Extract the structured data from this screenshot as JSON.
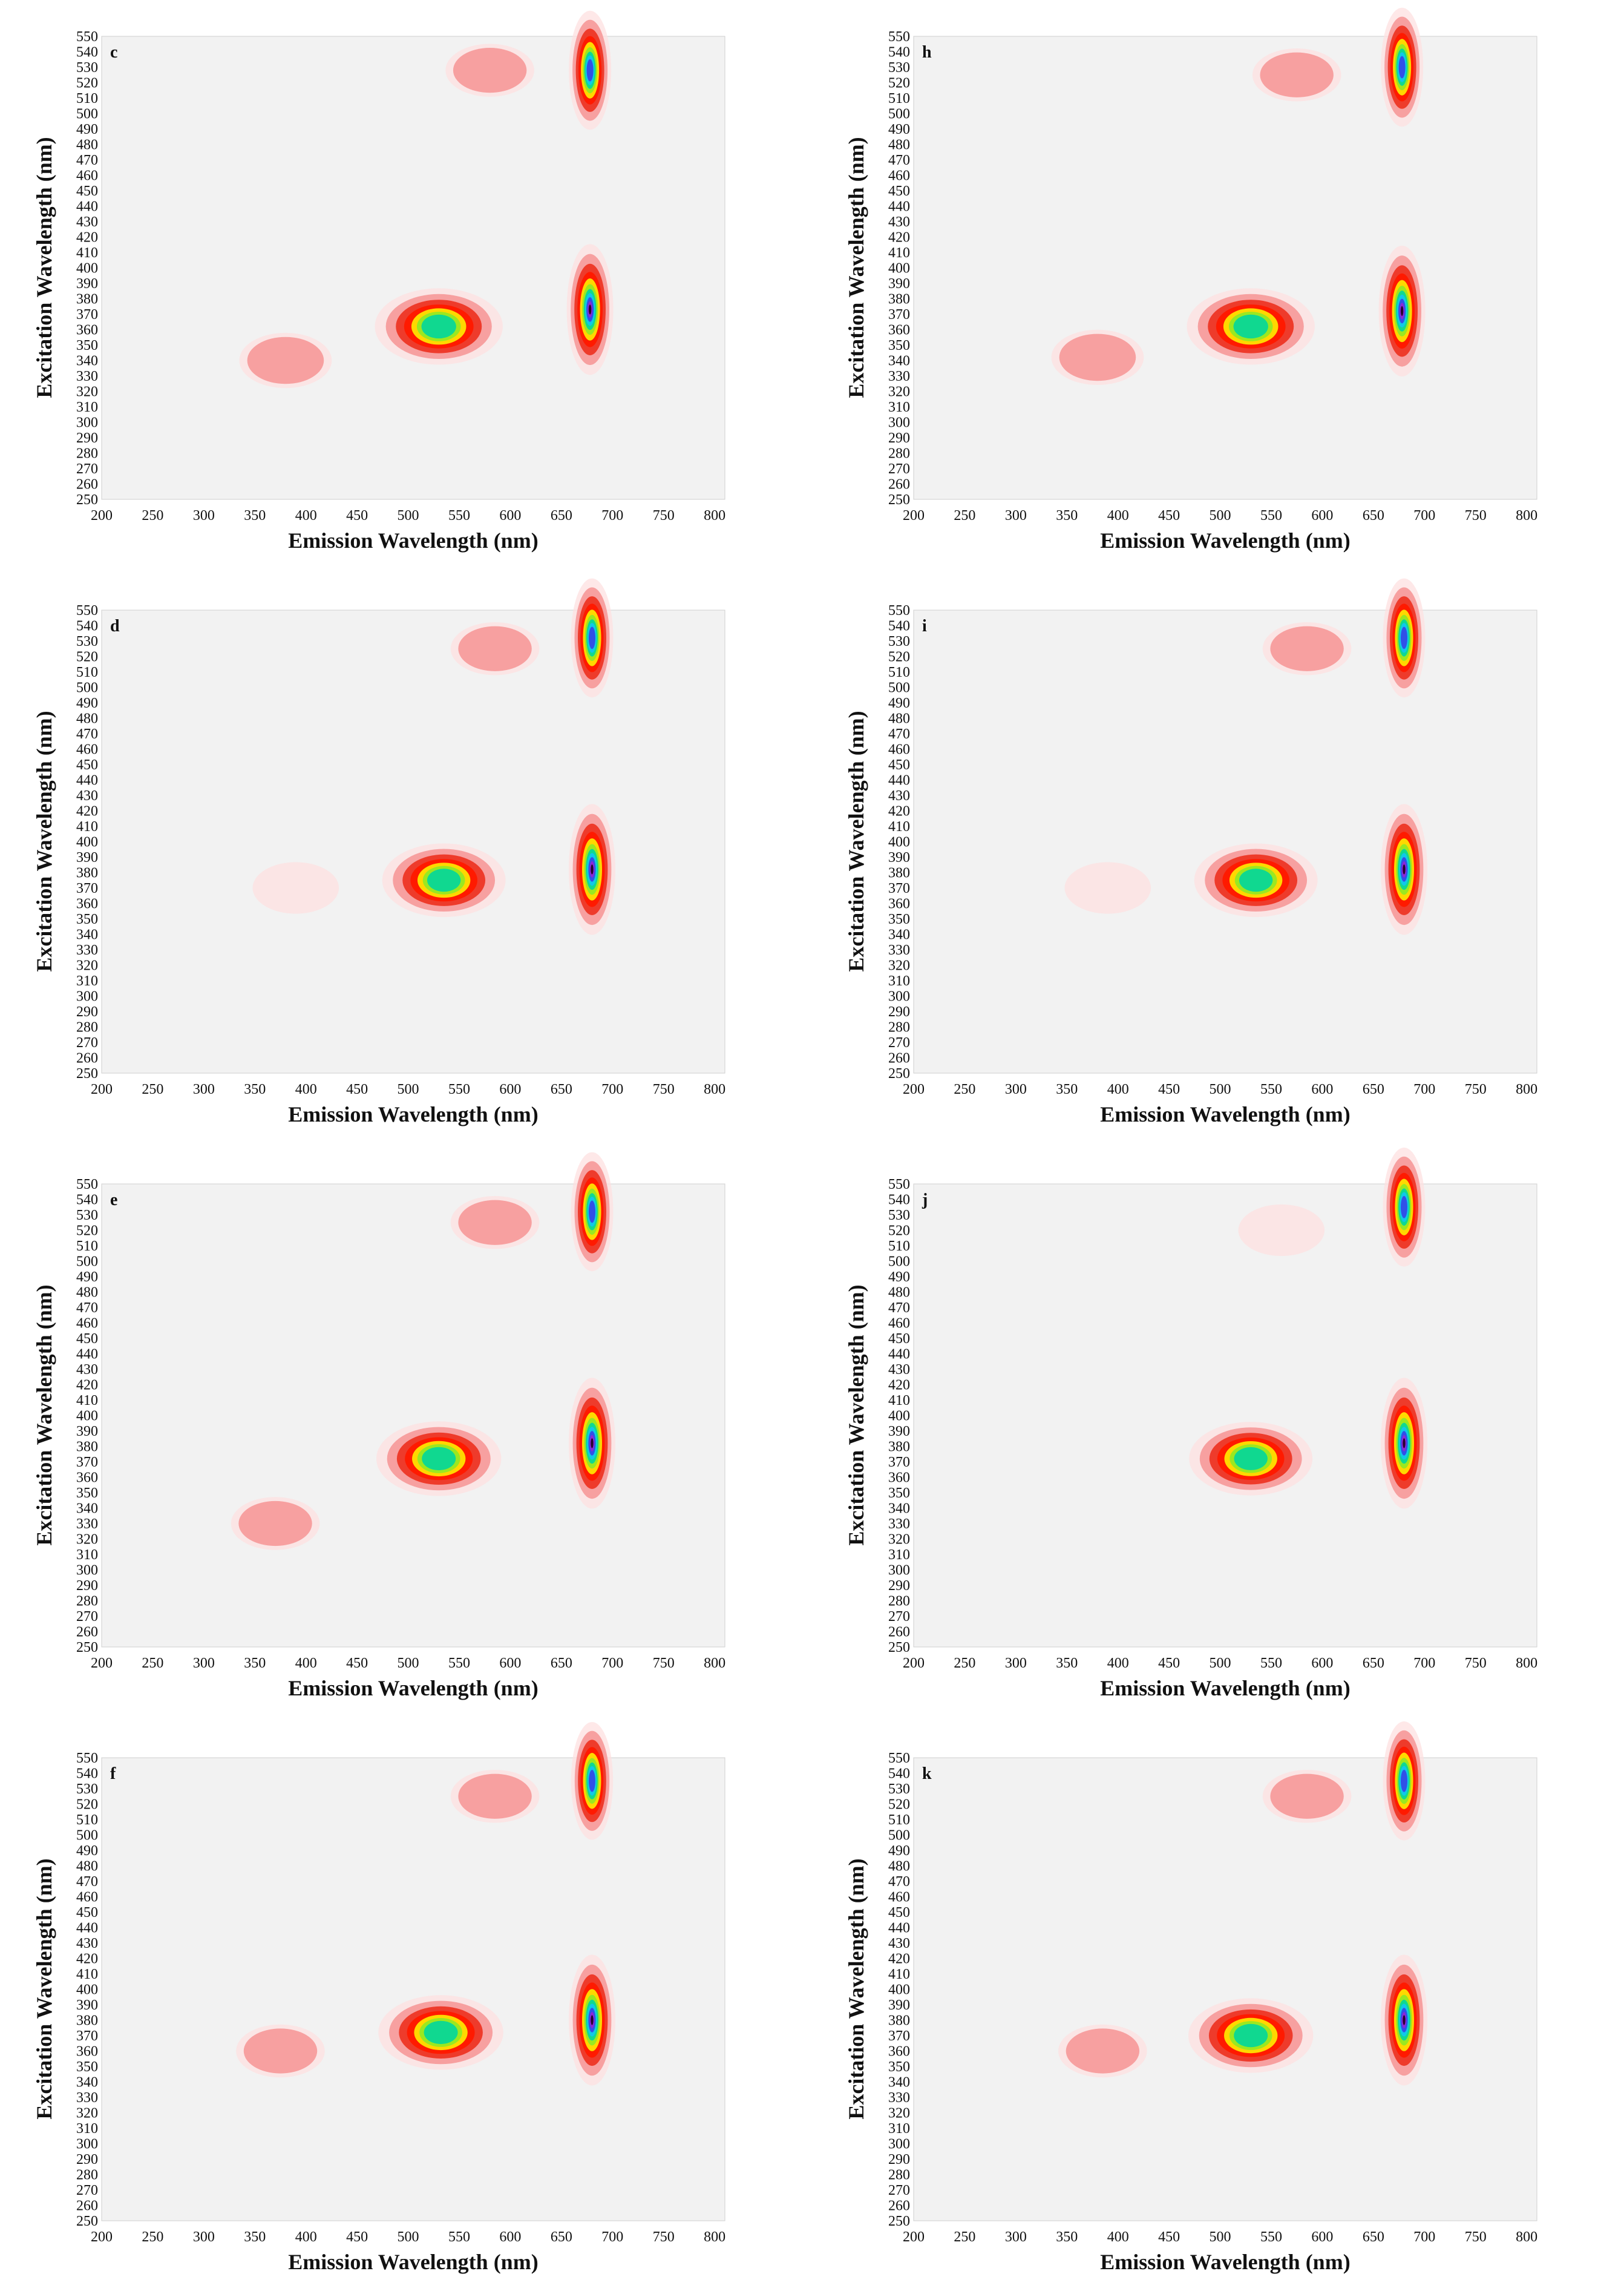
{
  "figure": {
    "panel_order": [
      "c",
      "h",
      "d",
      "i",
      "e",
      "j",
      "f",
      "k"
    ]
  },
  "colors": {
    "background": "#f2f2f2",
    "plot_edge": "#cfcfcf",
    "colormap": [
      "#fde0e0",
      "#f7a0a0",
      "#ee3b2b",
      "#ff1a00",
      "#ffd800",
      "#9be820",
      "#10d890",
      "#10c8e8",
      "#3050e8",
      "#8a28d8",
      "#2a0033"
    ]
  },
  "chart_data": [
    {
      "panel": "c",
      "type": "heatmap",
      "title": "",
      "xlabel": "Emission Wavelength (nm)",
      "ylabel": "Excitation Wavelength (nm)",
      "xlim": [
        200,
        810
      ],
      "ylim": [
        250,
        550
      ],
      "x_ticks": [
        "200",
        "250",
        "300",
        "350",
        "400",
        "450",
        "500",
        "550",
        "600",
        "650",
        "700",
        "750",
        "800"
      ],
      "y_ticks": [
        "250",
        "260",
        "270",
        "280",
        "290",
        "300",
        "310",
        "320",
        "330",
        "340",
        "350",
        "360",
        "370",
        "380",
        "390",
        "400",
        "410",
        "420",
        "430",
        "440",
        "450",
        "460",
        "470",
        "480",
        "490",
        "500",
        "510",
        "520",
        "530",
        "540",
        "550"
      ],
      "peaks": [
        {
          "em": 530,
          "ex": 362,
          "intensity": 0.66
        },
        {
          "em": 678,
          "ex": 373,
          "intensity": 1.0
        },
        {
          "em": 678,
          "ex": 528,
          "intensity": 0.82
        },
        {
          "em": 380,
          "ex": 340,
          "intensity": 0.2
        },
        {
          "em": 580,
          "ex": 528,
          "intensity": 0.15
        }
      ]
    },
    {
      "panel": "h",
      "type": "heatmap",
      "title": "",
      "xlabel": "Emission Wavelength (nm)",
      "ylabel": "Excitation Wavelength (nm)",
      "xlim": [
        200,
        810
      ],
      "ylim": [
        250,
        550
      ],
      "x_ticks": [
        "200",
        "250",
        "300",
        "350",
        "400",
        "450",
        "500",
        "550",
        "600",
        "650",
        "700",
        "750",
        "800"
      ],
      "y_ticks": [
        "250",
        "260",
        "270",
        "280",
        "290",
        "300",
        "310",
        "320",
        "330",
        "340",
        "350",
        "360",
        "370",
        "380",
        "390",
        "400",
        "410",
        "420",
        "430",
        "440",
        "450",
        "460",
        "470",
        "480",
        "490",
        "500",
        "510",
        "520",
        "530",
        "540",
        "550"
      ],
      "peaks": [
        {
          "em": 530,
          "ex": 362,
          "intensity": 0.66
        },
        {
          "em": 678,
          "ex": 372,
          "intensity": 1.0
        },
        {
          "em": 678,
          "ex": 530,
          "intensity": 0.82
        },
        {
          "em": 380,
          "ex": 342,
          "intensity": 0.2
        },
        {
          "em": 575,
          "ex": 525,
          "intensity": 0.15
        }
      ]
    },
    {
      "panel": "d",
      "type": "heatmap",
      "title": "",
      "xlabel": "Emission Wavelength (nm)",
      "ylabel": "Excitation Wavelength (nm)",
      "xlim": [
        200,
        810
      ],
      "ylim": [
        250,
        550
      ],
      "x_ticks": [
        "200",
        "250",
        "300",
        "350",
        "400",
        "450",
        "500",
        "550",
        "600",
        "650",
        "700",
        "750",
        "800"
      ],
      "y_ticks": [
        "250",
        "260",
        "270",
        "280",
        "290",
        "300",
        "310",
        "320",
        "330",
        "340",
        "350",
        "360",
        "370",
        "380",
        "390",
        "400",
        "410",
        "420",
        "430",
        "440",
        "450",
        "460",
        "470",
        "480",
        "490",
        "500",
        "510",
        "520",
        "530",
        "540",
        "550"
      ],
      "peaks": [
        {
          "em": 535,
          "ex": 375,
          "intensity": 0.6
        },
        {
          "em": 680,
          "ex": 382,
          "intensity": 1.0
        },
        {
          "em": 680,
          "ex": 532,
          "intensity": 0.82
        },
        {
          "em": 390,
          "ex": 370,
          "intensity": 0.12
        },
        {
          "em": 585,
          "ex": 525,
          "intensity": 0.15
        }
      ]
    },
    {
      "panel": "i",
      "type": "heatmap",
      "title": "",
      "xlabel": "Emission Wavelength (nm)",
      "ylabel": "Excitation Wavelength (nm)",
      "xlim": [
        200,
        810
      ],
      "ylim": [
        250,
        550
      ],
      "x_ticks": [
        "200",
        "250",
        "300",
        "350",
        "400",
        "450",
        "500",
        "550",
        "600",
        "650",
        "700",
        "750",
        "800"
      ],
      "y_ticks": [
        "250",
        "260",
        "270",
        "280",
        "290",
        "300",
        "310",
        "320",
        "330",
        "340",
        "350",
        "360",
        "370",
        "380",
        "390",
        "400",
        "410",
        "420",
        "430",
        "440",
        "450",
        "460",
        "470",
        "480",
        "490",
        "500",
        "510",
        "520",
        "530",
        "540",
        "550"
      ],
      "peaks": [
        {
          "em": 535,
          "ex": 375,
          "intensity": 0.6
        },
        {
          "em": 680,
          "ex": 382,
          "intensity": 1.0
        },
        {
          "em": 680,
          "ex": 532,
          "intensity": 0.82
        },
        {
          "em": 390,
          "ex": 370,
          "intensity": 0.12
        },
        {
          "em": 585,
          "ex": 525,
          "intensity": 0.15
        }
      ]
    },
    {
      "panel": "e",
      "type": "heatmap",
      "title": "",
      "xlabel": "Emission Wavelength (nm)",
      "ylabel": "Excitation Wavelength (nm)",
      "xlim": [
        200,
        810
      ],
      "ylim": [
        250,
        550
      ],
      "x_ticks": [
        "200",
        "250",
        "300",
        "350",
        "400",
        "450",
        "500",
        "550",
        "600",
        "650",
        "700",
        "750",
        "800"
      ],
      "y_ticks": [
        "250",
        "260",
        "270",
        "280",
        "290",
        "300",
        "310",
        "320",
        "330",
        "340",
        "350",
        "360",
        "370",
        "380",
        "390",
        "400",
        "410",
        "420",
        "430",
        "440",
        "450",
        "460",
        "470",
        "480",
        "490",
        "500",
        "510",
        "520",
        "530",
        "540",
        "550"
      ],
      "peaks": [
        {
          "em": 530,
          "ex": 372,
          "intensity": 0.62
        },
        {
          "em": 680,
          "ex": 382,
          "intensity": 1.0
        },
        {
          "em": 680,
          "ex": 532,
          "intensity": 0.82
        },
        {
          "em": 370,
          "ex": 330,
          "intensity": 0.15
        },
        {
          "em": 585,
          "ex": 525,
          "intensity": 0.15
        }
      ]
    },
    {
      "panel": "j",
      "type": "heatmap",
      "title": "",
      "xlabel": "Emission Wavelength (nm)",
      "ylabel": "Excitation Wavelength (nm)",
      "xlim": [
        200,
        810
      ],
      "ylim": [
        250,
        550
      ],
      "x_ticks": [
        "200",
        "250",
        "300",
        "350",
        "400",
        "450",
        "500",
        "550",
        "600",
        "650",
        "700",
        "750",
        "800"
      ],
      "y_ticks": [
        "250",
        "260",
        "270",
        "280",
        "290",
        "300",
        "310",
        "320",
        "330",
        "340",
        "350",
        "360",
        "370",
        "380",
        "390",
        "400",
        "410",
        "420",
        "430",
        "440",
        "450",
        "460",
        "470",
        "480",
        "490",
        "500",
        "510",
        "520",
        "530",
        "540",
        "550"
      ],
      "peaks": [
        {
          "em": 530,
          "ex": 372,
          "intensity": 0.6
        },
        {
          "em": 680,
          "ex": 382,
          "intensity": 1.0
        },
        {
          "em": 680,
          "ex": 535,
          "intensity": 0.82
        },
        {
          "em": 560,
          "ex": 520,
          "intensity": 0.12
        }
      ]
    },
    {
      "panel": "f",
      "type": "heatmap",
      "title": "",
      "xlabel": "Emission Wavelength (nm)",
      "ylabel": "Excitation Wavelength (nm)",
      "xlim": [
        200,
        810
      ],
      "ylim": [
        250,
        550
      ],
      "x_ticks": [
        "200",
        "250",
        "300",
        "350",
        "400",
        "450",
        "500",
        "550",
        "600",
        "650",
        "700",
        "750",
        "800"
      ],
      "y_ticks": [
        "250",
        "260",
        "270",
        "280",
        "290",
        "300",
        "310",
        "320",
        "330",
        "340",
        "350",
        "360",
        "370",
        "380",
        "390",
        "400",
        "410",
        "420",
        "430",
        "440",
        "450",
        "460",
        "470",
        "480",
        "490",
        "500",
        "510",
        "520",
        "530",
        "540",
        "550"
      ],
      "peaks": [
        {
          "em": 532,
          "ex": 372,
          "intensity": 0.62
        },
        {
          "em": 680,
          "ex": 380,
          "intensity": 1.0
        },
        {
          "em": 680,
          "ex": 535,
          "intensity": 0.8
        },
        {
          "em": 375,
          "ex": 360,
          "intensity": 0.15
        },
        {
          "em": 585,
          "ex": 525,
          "intensity": 0.15
        }
      ]
    },
    {
      "panel": "k",
      "type": "heatmap",
      "title": "",
      "xlabel": "Emission Wavelength (nm)",
      "ylabel": "Excitation Wavelength (nm)",
      "xlim": [
        200,
        810
      ],
      "ylim": [
        250,
        550
      ],
      "x_ticks": [
        "200",
        "250",
        "300",
        "350",
        "400",
        "450",
        "500",
        "550",
        "600",
        "650",
        "700",
        "750",
        "800"
      ],
      "y_ticks": [
        "250",
        "260",
        "270",
        "280",
        "290",
        "300",
        "310",
        "320",
        "330",
        "340",
        "350",
        "360",
        "370",
        "380",
        "390",
        "400",
        "410",
        "420",
        "430",
        "440",
        "450",
        "460",
        "470",
        "480",
        "490",
        "500",
        "510",
        "520",
        "530",
        "540",
        "550"
      ],
      "peaks": [
        {
          "em": 530,
          "ex": 370,
          "intensity": 0.62
        },
        {
          "em": 680,
          "ex": 380,
          "intensity": 1.0
        },
        {
          "em": 680,
          "ex": 535,
          "intensity": 0.82
        },
        {
          "em": 385,
          "ex": 360,
          "intensity": 0.15
        },
        {
          "em": 585,
          "ex": 525,
          "intensity": 0.15
        }
      ]
    }
  ]
}
